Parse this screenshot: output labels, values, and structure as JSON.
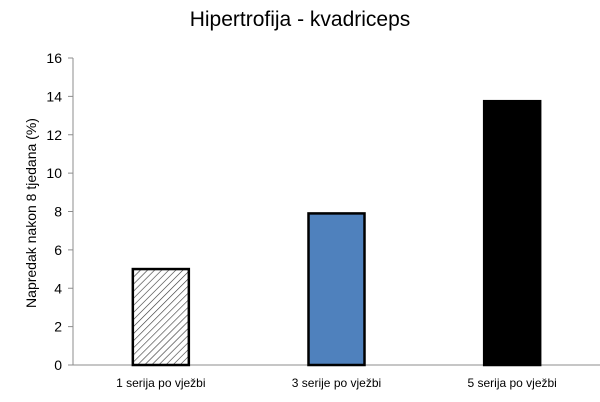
{
  "chart_data": {
    "type": "bar",
    "title": "Hipertrofija - kvadriceps",
    "xlabel": "",
    "ylabel": "Napredak nakon 8 tjedana (%)",
    "ylim": [
      0,
      16
    ],
    "yticks": [
      0,
      2,
      4,
      6,
      8,
      10,
      12,
      14,
      16
    ],
    "grid": false,
    "categories": [
      "1 serija po vježbi",
      "3 serije po vježbi",
      "5 serija po vježbi"
    ],
    "values": [
      5.0,
      7.9,
      13.75
    ],
    "bar_styles": [
      {
        "fill": "hatched",
        "color": "#ffffff",
        "stroke": "#000000"
      },
      {
        "fill": "solid",
        "color": "#4f81bd",
        "stroke": "#000000"
      },
      {
        "fill": "solid",
        "color": "#000000",
        "stroke": "#000000"
      }
    ]
  }
}
